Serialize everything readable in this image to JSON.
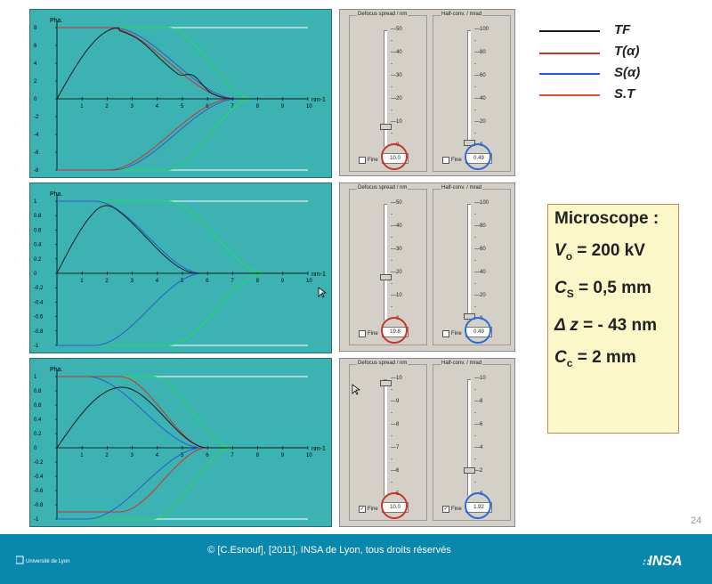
{
  "legend": {
    "items": [
      {
        "label": "TF",
        "color": "#1a1a1a"
      },
      {
        "label": "T(α)",
        "color": "#c8342a"
      },
      {
        "label": "S(α)",
        "color": "#2a5cc8"
      },
      {
        "label": "S.T",
        "color": "#d8502a"
      }
    ]
  },
  "info": {
    "title": "Microscope :",
    "lines": [
      {
        "sym": "V",
        "sub": "o",
        "rest": " = 200 kV"
      },
      {
        "sym": "C",
        "sub": "S",
        "rest": " = 0,5 mm"
      },
      {
        "sym": "Δ z",
        "sub": "",
        "rest": " = - 43 nm"
      },
      {
        "sym": "C",
        "sub": "c",
        "rest": " = 2 mm"
      }
    ]
  },
  "plots": [
    {
      "ylabel": "Pha.",
      "xunit": "nm-1",
      "yticks": [
        "8",
        "6",
        "4",
        "2",
        "0",
        "-2",
        "-4",
        "-6",
        "-8"
      ],
      "xticks": [
        "1",
        "2",
        "3",
        "4",
        "5",
        "6",
        "7",
        "8",
        "9",
        "10"
      ]
    },
    {
      "ylabel": "Pha.",
      "xunit": "nm-1",
      "yticks": [
        "1",
        "0.8",
        "0.6",
        "0.4",
        "0.2",
        "0",
        "-0.2",
        "-0.4",
        "-0.6",
        "-0.8",
        "-1"
      ],
      "xticks": [
        "1",
        "2",
        "3",
        "4",
        "5",
        "6",
        "7",
        "8",
        "9",
        "10"
      ]
    },
    {
      "ylabel": "Pha.",
      "xunit": "nm-1",
      "yticks": [
        "1",
        "0.8",
        "0.6",
        "0.4",
        "0.2",
        "0",
        "-0.2",
        "-0.4",
        "-0.6",
        "-0.8",
        "-1"
      ],
      "xticks": [
        "1",
        "2",
        "3",
        "4",
        "5",
        "6",
        "7",
        "8",
        "9",
        "10"
      ]
    }
  ],
  "controls": [
    {
      "defocus_title": "Defocus spread / nm",
      "defocus_ticks": [
        "50",
        "40",
        "30",
        "20",
        "10",
        "0"
      ],
      "defocus_value": "10.0",
      "defocus_fine": false,
      "half_title": "Half-conv. / mrad",
      "half_ticks": [
        "100",
        "80",
        "60",
        "40",
        "20",
        "0"
      ],
      "half_value": "0.49",
      "half_fine": false,
      "fine_label": "Fine"
    },
    {
      "defocus_title": "Defocus spread / nm",
      "defocus_ticks": [
        "50",
        "40",
        "30",
        "20",
        "10",
        "0"
      ],
      "defocus_value": "19.8",
      "defocus_fine": false,
      "half_title": "Half-conv. / mrad",
      "half_ticks": [
        "100",
        "80",
        "60",
        "40",
        "20",
        "0"
      ],
      "half_value": "0.49",
      "half_fine": false,
      "fine_label": "Fine"
    },
    {
      "defocus_title": "Defocus spread / nm",
      "defocus_ticks": [
        "10",
        "9",
        "8",
        "7",
        "6",
        "5"
      ],
      "defocus_value": "10.0",
      "defocus_fine": true,
      "half_title": "Half-conv. / mrad",
      "half_ticks": [
        "10",
        "8",
        "6",
        "4",
        "2",
        "0"
      ],
      "half_value": "1.92",
      "half_fine": true,
      "fine_label": "Fine"
    }
  ],
  "footer": {
    "text": "© [C.Esnouf], [2011], INSA de Lyon, tous droits réservés",
    "page": "24",
    "logo_left": "Université de Lyon",
    "logo_right": "INSA"
  }
}
